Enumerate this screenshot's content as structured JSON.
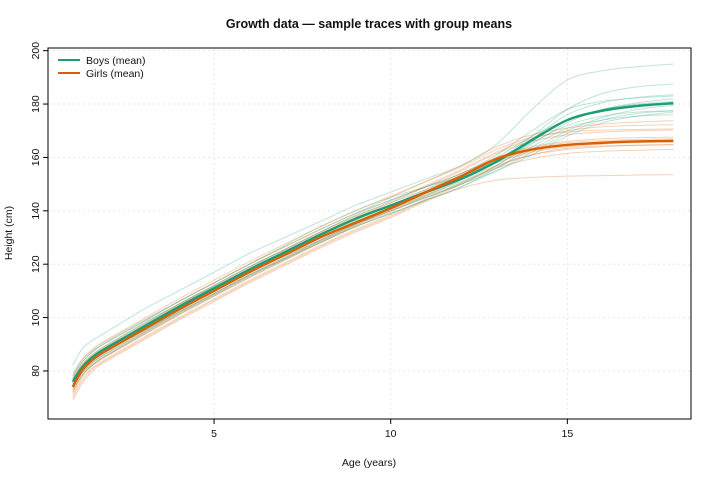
{
  "chart_data": {
    "type": "line",
    "title": "Growth data — sample traces with group means",
    "xlabel": "Age (years)",
    "ylabel": "Height (cm)",
    "xlim": [
      0.3,
      18.5
    ],
    "ylim": [
      62,
      201
    ],
    "xticks": [
      5,
      10,
      15
    ],
    "yticks": [
      80,
      100,
      120,
      140,
      160,
      180,
      200
    ],
    "grid": true,
    "legend": "top-left",
    "colors": {
      "boys": "#1b9e77",
      "girls": "#d95f02"
    },
    "ages": [
      1,
      1.25,
      1.5,
      1.75,
      2,
      3,
      4,
      5,
      6,
      7,
      8,
      9,
      10,
      11,
      12,
      13,
      14,
      15,
      16,
      17,
      18
    ],
    "series": [
      {
        "name": "Boys (mean)",
        "color": "#1b9e77",
        "x": [
          1,
          1.25,
          1.5,
          1.75,
          2,
          3,
          4,
          5,
          6,
          7,
          8,
          9,
          10,
          11,
          12,
          13,
          14,
          15,
          16,
          17,
          18
        ],
        "y": [
          76,
          81,
          84.5,
          87,
          89,
          96.5,
          104,
          111,
          118,
          124.5,
          131,
          137,
          142,
          147,
          152,
          158.5,
          166.5,
          174,
          177.5,
          179.3,
          180.3
        ]
      },
      {
        "name": "Girls (mean)",
        "color": "#d95f02",
        "x": [
          1,
          1.25,
          1.5,
          1.75,
          2,
          3,
          4,
          5,
          6,
          7,
          8,
          9,
          10,
          11,
          12,
          13,
          14,
          15,
          16,
          17,
          18
        ],
        "y": [
          74,
          80,
          83.5,
          86,
          88,
          95.5,
          103,
          110,
          117,
          123.5,
          130,
          135.5,
          141,
          147,
          153,
          159.5,
          163,
          164.7,
          165.5,
          166,
          166.2
        ]
      }
    ],
    "boys_traces": [
      [
        79,
        84,
        87,
        89.5,
        91.5,
        99,
        106,
        113,
        120,
        126.5,
        133,
        139,
        144,
        149,
        154,
        160,
        168,
        174,
        178,
        180,
        181
      ],
      [
        82,
        88,
        91,
        93,
        95,
        103,
        110,
        117,
        124,
        130,
        136,
        142,
        147,
        152,
        157,
        165,
        178,
        189,
        192.5,
        194,
        195
      ],
      [
        74,
        79,
        82.5,
        85,
        87,
        94.5,
        102,
        109,
        116,
        122,
        128,
        134,
        139,
        144,
        149,
        156,
        164,
        171,
        174,
        175.5,
        176
      ],
      [
        77,
        82,
        85.5,
        88,
        90,
        98,
        105,
        112,
        119,
        125.5,
        132,
        138,
        143,
        148,
        153,
        159,
        168,
        178,
        184,
        186.5,
        187.5
      ],
      [
        75,
        80,
        83.5,
        86,
        88,
        95,
        102.5,
        110,
        117,
        123,
        129,
        135,
        140,
        145,
        150,
        155,
        161,
        168,
        173,
        175.5,
        177
      ],
      [
        78,
        83,
        86.5,
        89,
        91,
        98.5,
        106,
        113,
        120,
        127,
        134,
        140,
        145,
        149,
        153,
        159,
        167,
        176,
        180.5,
        182.5,
        183.5
      ],
      [
        76,
        81,
        84.5,
        87,
        89,
        97,
        104.5,
        111.5,
        118,
        124,
        130,
        136,
        141,
        146,
        151,
        157,
        165,
        173,
        178,
        180.5,
        182
      ],
      [
        73,
        78,
        81.5,
        84,
        86,
        93.5,
        101,
        108,
        115,
        121.5,
        128,
        134,
        139,
        144,
        149,
        155,
        162,
        169,
        174,
        176.5,
        177.5
      ],
      [
        77,
        82,
        85,
        87.5,
        89.5,
        97.5,
        105,
        112,
        119,
        125.5,
        132,
        138.5,
        144,
        149,
        154,
        161,
        170,
        178,
        181,
        182.3,
        183
      ],
      [
        74,
        79,
        82,
        84.5,
        86.5,
        94,
        101.5,
        108.5,
        115.5,
        122,
        128.5,
        134.5,
        140,
        145,
        150,
        156,
        163,
        170,
        175,
        178,
        179.5
      ],
      [
        76,
        81,
        84.5,
        87,
        89,
        96.5,
        103.5,
        110.5,
        117.5,
        124,
        130.5,
        136.5,
        142,
        147,
        152,
        158,
        165.5,
        172,
        175.5,
        177,
        177.5
      ],
      [
        75,
        80,
        83,
        85.5,
        87.5,
        95,
        102,
        109,
        116,
        122.5,
        129,
        135,
        140.5,
        145.5,
        150.5,
        157,
        166,
        174,
        178,
        179.7,
        180.5
      ]
    ],
    "girls_traces": [
      [
        72,
        78,
        81.5,
        84,
        86,
        93.5,
        101,
        108,
        115,
        121.5,
        128,
        134,
        139.5,
        145.5,
        151.5,
        157,
        161,
        163,
        164,
        164.5,
        164.8
      ],
      [
        69,
        75,
        79,
        82,
        84,
        91.5,
        99,
        106,
        113,
        119.5,
        126,
        132,
        137.5,
        143.5,
        148.5,
        151.5,
        152.5,
        153,
        153.2,
        153.4,
        153.5
      ],
      [
        77,
        83,
        86.5,
        89,
        91,
        98.5,
        106,
        113,
        120,
        126.5,
        133,
        139,
        145,
        151,
        157,
        164,
        168.5,
        171,
        172.5,
        173.3,
        173.8
      ],
      [
        74,
        80,
        83.5,
        86,
        88,
        96,
        103.5,
        110.5,
        117.5,
        124,
        130.5,
        136.5,
        142,
        148,
        154,
        160,
        164,
        166,
        167,
        167.4,
        167.6
      ],
      [
        71,
        77,
        80.5,
        83,
        85,
        92.5,
        100,
        107,
        114,
        120.5,
        127,
        133,
        138.5,
        144.5,
        150.5,
        156,
        159.5,
        161.5,
        162.3,
        162.7,
        163
      ],
      [
        75,
        81,
        84.5,
        87,
        89,
        97,
        104.5,
        111.5,
        118.5,
        125,
        131.5,
        137.5,
        143,
        149,
        155,
        161.5,
        166,
        168.5,
        169.5,
        170,
        170.3
      ],
      [
        73,
        79,
        82.5,
        85,
        87,
        94.5,
        102,
        109,
        116,
        122.5,
        129,
        135,
        140.5,
        146.5,
        152.5,
        158.5,
        162.5,
        164.5,
        165.5,
        166,
        166.3
      ],
      [
        76,
        82,
        85.5,
        88,
        90,
        97.5,
        105,
        112,
        119,
        125.5,
        132,
        138,
        143.5,
        149.5,
        155.5,
        162,
        167,
        170,
        171.5,
        172,
        172.3
      ],
      [
        70,
        76,
        80,
        82.5,
        84.5,
        92,
        99.5,
        106.5,
        113.5,
        120,
        126.5,
        132.5,
        138,
        144,
        150,
        156.5,
        161,
        163.5,
        164.3,
        164.6,
        164.8
      ],
      [
        74,
        80,
        83.5,
        86,
        88,
        95.5,
        103,
        110,
        117,
        123.5,
        130,
        136,
        141.5,
        147.5,
        153.5,
        159.5,
        163.5,
        165.5,
        166.3,
        166.7,
        167
      ],
      [
        72,
        78,
        81.5,
        84,
        86,
        94,
        101.5,
        108.5,
        115.5,
        122,
        128.5,
        134.5,
        140,
        146,
        152,
        158,
        162,
        164,
        165,
        165.5,
        165.7
      ],
      [
        78,
        84,
        87.5,
        90,
        92,
        99.5,
        107,
        114,
        121,
        127.5,
        134,
        140,
        145.5,
        151,
        156.5,
        163,
        167.5,
        169.5,
        170.2,
        170.5,
        170.7
      ]
    ]
  }
}
